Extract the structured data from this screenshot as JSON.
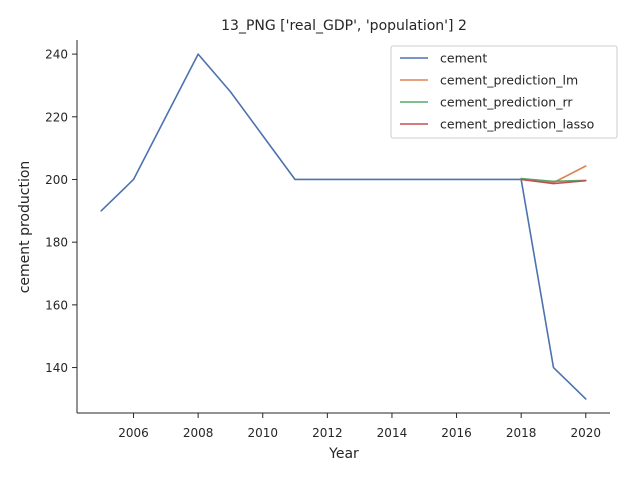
{
  "chart_data": {
    "type": "line",
    "title": "13_PNG ['real_GDP', 'population'] 2",
    "xlabel": "Year",
    "ylabel": "cement production",
    "xlim": [
      2004.25,
      2020.75
    ],
    "ylim": [
      125.5,
      244.5
    ],
    "xticks": [
      2006,
      2008,
      2010,
      2012,
      2014,
      2016,
      2018,
      2020
    ],
    "yticks": [
      140,
      160,
      180,
      200,
      220,
      240
    ],
    "grid": false,
    "legend_position": "top-right",
    "series": [
      {
        "name": "cement",
        "color": "#4c72b0",
        "x": [
          2005,
          2006,
          2007,
          2008,
          2009,
          2010,
          2011,
          2012,
          2013,
          2014,
          2015,
          2016,
          2017,
          2018,
          2019,
          2020
        ],
        "y": [
          190,
          200,
          220,
          240,
          228,
          214,
          200,
          200,
          200,
          200,
          200,
          200,
          200,
          200,
          140,
          130
        ]
      },
      {
        "name": "cement_prediction_lm",
        "color": "#dd8452",
        "x": [
          2018,
          2019,
          2020
        ],
        "y": [
          200,
          199,
          204.3
        ]
      },
      {
        "name": "cement_prediction_rr",
        "color": "#55a868",
        "x": [
          2018,
          2019,
          2020
        ],
        "y": [
          200.3,
          199.4,
          199.7
        ]
      },
      {
        "name": "cement_prediction_lasso",
        "color": "#c44e52",
        "x": [
          2018,
          2019,
          2020
        ],
        "y": [
          200,
          198.7,
          199.6
        ]
      }
    ]
  }
}
